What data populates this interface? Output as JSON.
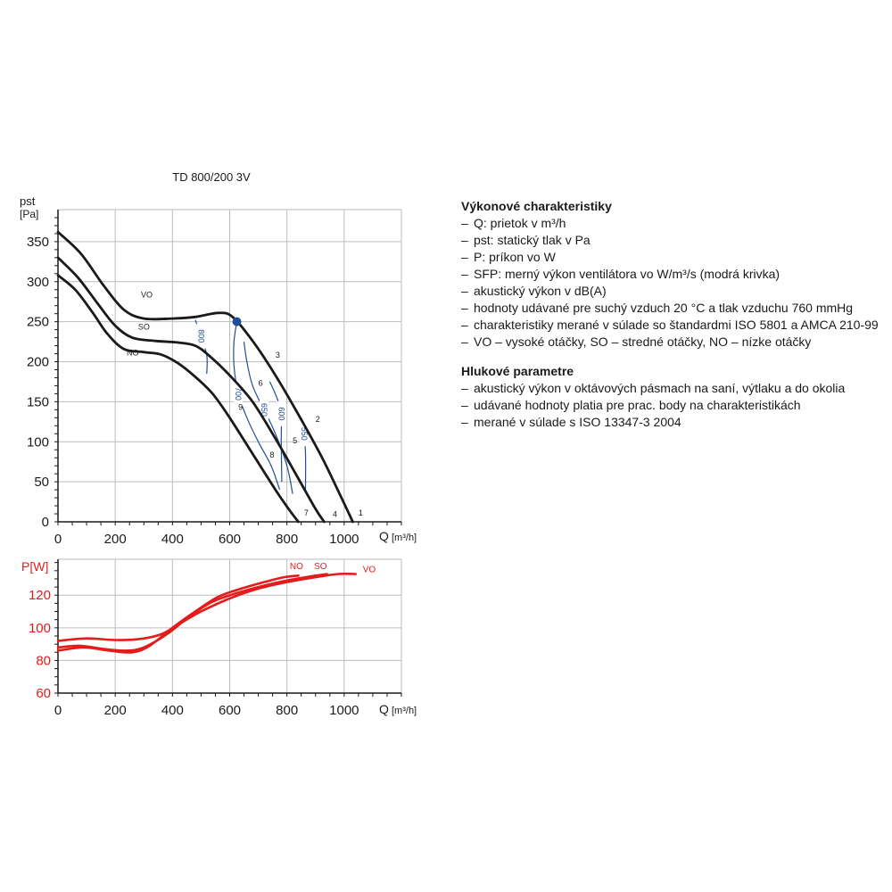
{
  "chart_data": [
    {
      "type": "line",
      "title": "TD 800/200 3V",
      "ylabel": "pst",
      "ylabel_unit": "[Pa]",
      "xlabel": "Q",
      "xlabel_unit": "[m³/h]",
      "xlim": [
        0,
        1200
      ],
      "ylim": [
        0,
        390
      ],
      "xticks": [
        0,
        200,
        400,
        600,
        800,
        1000
      ],
      "yticks": [
        0,
        50,
        100,
        150,
        200,
        250,
        300,
        350
      ],
      "grid": true,
      "series": [
        {
          "name": "VO",
          "color": "#1a1a1a",
          "points": [
            [
              0,
              362
            ],
            [
              80,
              335
            ],
            [
              160,
              295
            ],
            [
              230,
              265
            ],
            [
              300,
              254
            ],
            [
              400,
              254
            ],
            [
              480,
              256
            ],
            [
              560,
              261
            ],
            [
              610,
              256
            ],
            [
              680,
              226
            ],
            [
              760,
              183
            ],
            [
              840,
              134
            ],
            [
              920,
              82
            ],
            [
              980,
              38
            ],
            [
              1030,
              0
            ]
          ]
        },
        {
          "name": "SO",
          "color": "#1a1a1a",
          "points": [
            [
              0,
              330
            ],
            [
              70,
              305
            ],
            [
              140,
              272
            ],
            [
              200,
              245
            ],
            [
              260,
              230
            ],
            [
              340,
              226
            ],
            [
              420,
              224
            ],
            [
              480,
              220
            ],
            [
              530,
              207
            ],
            [
              600,
              183
            ],
            [
              680,
              150
            ],
            [
              760,
              104
            ],
            [
              840,
              54
            ],
            [
              900,
              16
            ],
            [
              930,
              0
            ]
          ]
        },
        {
          "name": "NO",
          "color": "#1a1a1a",
          "points": [
            [
              0,
              308
            ],
            [
              60,
              290
            ],
            [
              120,
              262
            ],
            [
              170,
              236
            ],
            [
              230,
              216
            ],
            [
              300,
              212
            ],
            [
              360,
              209
            ],
            [
              420,
              198
            ],
            [
              480,
              181
            ],
            [
              540,
              160
            ],
            [
              600,
              130
            ],
            [
              680,
              85
            ],
            [
              760,
              40
            ],
            [
              810,
              14
            ],
            [
              840,
              0
            ]
          ]
        }
      ],
      "sfp_curves": [
        {
          "label": "800",
          "color": "#1f4e9c",
          "points": [
            [
              480,
              252
            ],
            [
              500,
              232
            ],
            [
              520,
              208
            ],
            [
              520,
              185
            ]
          ]
        },
        {
          "label": "700",
          "color": "#1f4e9c",
          "points": [
            [
              625,
              250
            ],
            [
              615,
              225
            ],
            [
              615,
              195
            ],
            [
              630,
              160
            ],
            [
              660,
              130
            ],
            [
              700,
              100
            ],
            [
              745,
              70
            ],
            [
              775,
              40
            ]
          ]
        },
        {
          "label": "650",
          "color": "#1f4e9c",
          "points": [
            [
              650,
              225
            ],
            [
              660,
              200
            ],
            [
              680,
              170
            ],
            [
              720,
              140
            ],
            [
              760,
              110
            ],
            [
              800,
              70
            ],
            [
              820,
              35
            ]
          ]
        },
        {
          "label": "600",
          "color": "#1f4e9c",
          "points": [
            [
              740,
              175
            ],
            [
              765,
              155
            ],
            [
              780,
              135
            ],
            [
              780,
              100
            ],
            [
              782,
              50
            ]
          ]
        },
        {
          "label": "550",
          "color": "#1f4e9c",
          "points": [
            [
              850,
              130
            ],
            [
              860,
              110
            ],
            [
              865,
              85
            ],
            [
              865,
              40
            ]
          ]
        }
      ],
      "operating_point": {
        "x": 625,
        "y": 250,
        "color": "#1f4e9c"
      },
      "point_labels": [
        {
          "text": "1",
          "x": 1050,
          "y": 8
        },
        {
          "text": "2",
          "x": 900,
          "y": 125
        },
        {
          "text": "3",
          "x": 760,
          "y": 205
        },
        {
          "text": "4",
          "x": 960,
          "y": 6
        },
        {
          "text": "5",
          "x": 820,
          "y": 98
        },
        {
          "text": "6",
          "x": 700,
          "y": 170
        },
        {
          "text": "7",
          "x": 860,
          "y": 8
        },
        {
          "text": "8",
          "x": 740,
          "y": 80
        },
        {
          "text": "9",
          "x": 630,
          "y": 140
        },
        {
          "text": "VO",
          "x": 290,
          "y": 280
        },
        {
          "text": "SO",
          "x": 280,
          "y": 240
        },
        {
          "text": "NO",
          "x": 240,
          "y": 208
        }
      ]
    },
    {
      "type": "line",
      "ylabel": "P[W]",
      "xlabel": "Q",
      "xlabel_unit": "[m³/h]",
      "xlim": [
        0,
        1200
      ],
      "ylim": [
        60,
        142
      ],
      "xticks": [
        0,
        200,
        400,
        600,
        800,
        1000
      ],
      "yticks": [
        60,
        80,
        100,
        120
      ],
      "grid": true,
      "series": [
        {
          "name": "VO",
          "color": "#e31b1b",
          "points": [
            [
              0,
              92
            ],
            [
              100,
              93.5
            ],
            [
              200,
              92.5
            ],
            [
              280,
              93
            ],
            [
              360,
              96
            ],
            [
              420,
              102
            ],
            [
              500,
              110
            ],
            [
              600,
              118
            ],
            [
              700,
              124
            ],
            [
              800,
              128
            ],
            [
              900,
              131
            ],
            [
              980,
              133
            ],
            [
              1040,
              133
            ]
          ]
        },
        {
          "name": "SO",
          "color": "#e31b1b",
          "points": [
            [
              0,
              88
            ],
            [
              80,
              89
            ],
            [
              160,
              87
            ],
            [
              240,
              86
            ],
            [
              300,
              88
            ],
            [
              380,
              96
            ],
            [
              460,
              107
            ],
            [
              540,
              116
            ],
            [
              620,
              121
            ],
            [
              700,
              125
            ],
            [
              800,
              129
            ],
            [
              900,
              132
            ],
            [
              940,
              133
            ]
          ]
        },
        {
          "name": "NO",
          "color": "#e31b1b",
          "points": [
            [
              0,
              86
            ],
            [
              90,
              88
            ],
            [
              180,
              86
            ],
            [
              260,
              85
            ],
            [
              320,
              89
            ],
            [
              400,
              100
            ],
            [
              480,
              110
            ],
            [
              560,
              119
            ],
            [
              640,
              124
            ],
            [
              720,
              128
            ],
            [
              790,
              131
            ],
            [
              840,
              132
            ]
          ]
        }
      ],
      "series_labels": [
        {
          "text": "NO",
          "x": 810,
          "y": 136
        },
        {
          "text": "SO",
          "x": 895,
          "y": 136
        },
        {
          "text": "VO",
          "x": 1065,
          "y": 134
        }
      ]
    }
  ],
  "info": {
    "performance_title": "Výkonové charakteristiky",
    "performance_items": [
      "Q: prietok v m³/h",
      "pst: statický tlak v Pa",
      "P: príkon vo W",
      "SFP: merný výkon ventilátora vo W/m³/s (modrá krivka)",
      "akustický výkon v dB(A)",
      "hodnoty udávané pre suchý vzduch 20 °C a tlak vzduchu 760 mmHg",
      "charakteristiky merané v súlade so štandardmi ISO 5801 a AMCA 210-99",
      "VO – vysoké otáčky, SO – stredné otáčky, NO – nízke otáčky"
    ],
    "noise_title": "Hlukové parametre",
    "noise_items": [
      "akustický výkon v oktávových pásmach na saní, výtlaku a do okolia",
      "udávané hodnoty platia pre prac. body na charakteristikách",
      "merané v súlade s ISO 13347-3 2004"
    ]
  }
}
